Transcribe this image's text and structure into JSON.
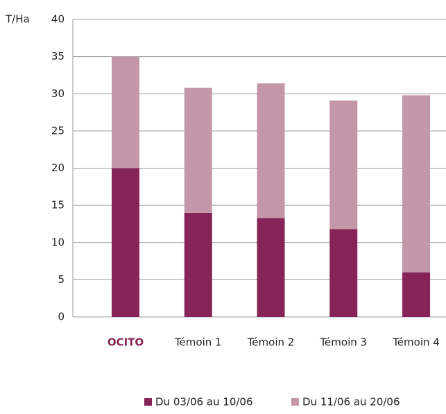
{
  "chart_data": {
    "type": "stacked_bar",
    "y_label": "T/Ha",
    "categories": [
      "OCITO",
      "Témoin 1",
      "Témoin 2",
      "Témoin 3",
      "Témoin 4"
    ],
    "series": [
      {
        "name": "Du 03/06 au 10/06",
        "color": "#862457",
        "values": [
          20,
          14,
          13.3,
          11.8,
          6
        ]
      },
      {
        "name": "Du 11/06 au 20/06",
        "color": "#c497a8",
        "values": [
          15,
          16.8,
          18.1,
          17.3,
          23.8
        ]
      }
    ],
    "ylim": [
      0,
      40
    ],
    "yticks": [
      0,
      5,
      10,
      15,
      20,
      25,
      30,
      35,
      40
    ],
    "grid": true,
    "legend": "bottom"
  }
}
